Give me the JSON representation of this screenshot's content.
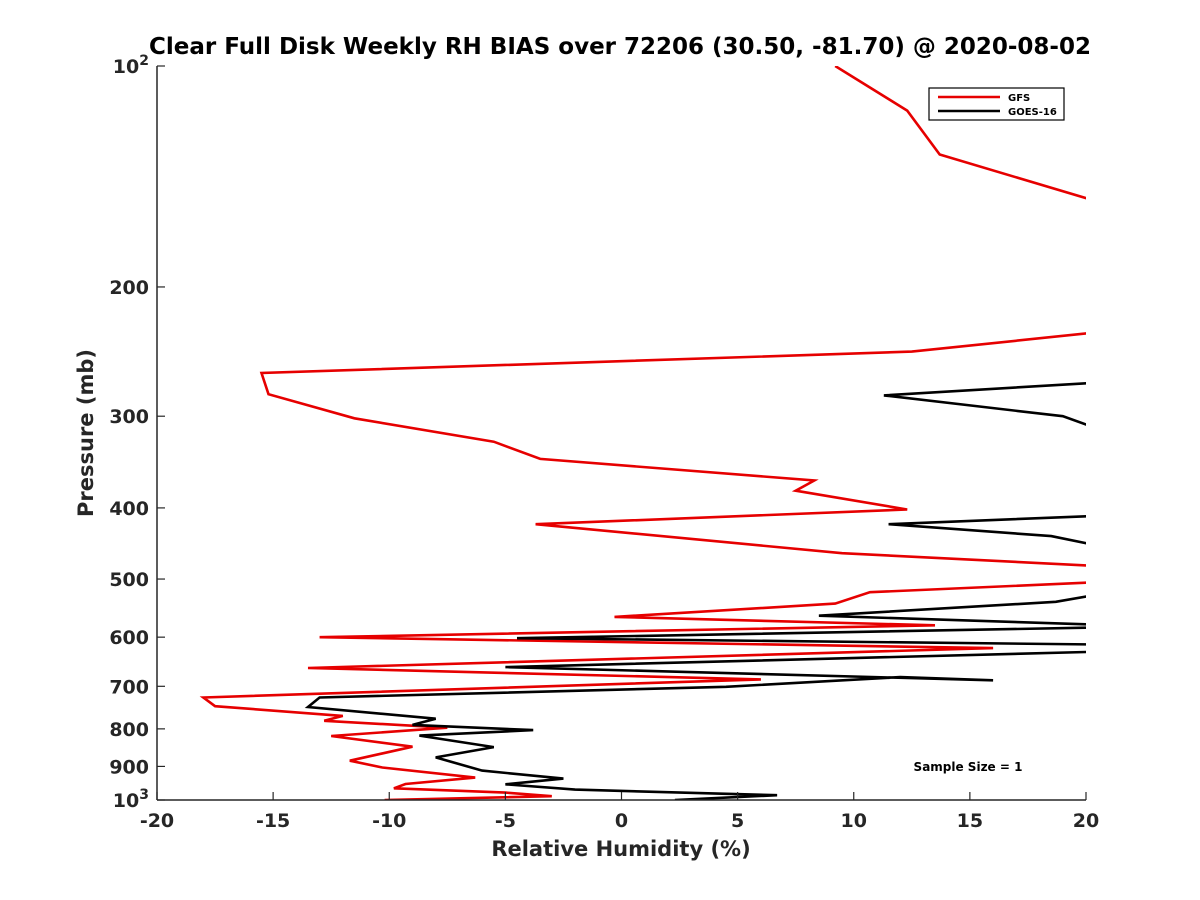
{
  "chart_data": {
    "type": "line",
    "title": "Clear Full Disk Weekly RH BIAS over 72206 (30.50, -81.70) @ 2020-08-02",
    "xlabel": "Relative Humidity (%)",
    "ylabel": "Pressure (mb)",
    "xlim": [
      -20,
      20
    ],
    "ylim": [
      100,
      1000
    ],
    "yscale": "log",
    "y_reversed": true,
    "grid": false,
    "legend_position": "top-right",
    "x_ticks": [
      -20,
      -15,
      -10,
      -5,
      0,
      5,
      10,
      15,
      20
    ],
    "x_tick_labels": [
      "-20",
      "-15",
      "-10",
      "-5",
      "0",
      "5",
      "10",
      "15",
      "20"
    ],
    "y_ticks": [
      100,
      200,
      300,
      400,
      500,
      600,
      700,
      800,
      900,
      1000
    ],
    "y_tick_labels": [
      {
        "base": "10",
        "exp": "2"
      },
      {
        "base": "200",
        "exp": ""
      },
      {
        "base": "300",
        "exp": ""
      },
      {
        "base": "400",
        "exp": ""
      },
      {
        "base": "500",
        "exp": ""
      },
      {
        "base": "600",
        "exp": ""
      },
      {
        "base": "700",
        "exp": ""
      },
      {
        "base": "800",
        "exp": ""
      },
      {
        "base": "900",
        "exp": ""
      },
      {
        "base": "10",
        "exp": "3"
      }
    ],
    "annotation": "Sample Size = 1",
    "series": [
      {
        "name": "GFS",
        "color": "#e60000",
        "points": [
          [
            9.2,
            100
          ],
          [
            12.3,
            115
          ],
          [
            13.7,
            132
          ],
          [
            20.5,
            153
          ],
          [
            20.8,
            230
          ],
          [
            12.5,
            245
          ],
          [
            -15.5,
            262
          ],
          [
            -15.2,
            280
          ],
          [
            -11.5,
            302
          ],
          [
            -5.5,
            325
          ],
          [
            -3.5,
            343
          ],
          [
            8.3,
            367
          ],
          [
            7.5,
            379
          ],
          [
            12.3,
            402
          ],
          [
            -3.7,
            421
          ],
          [
            9.5,
            461
          ],
          [
            20.5,
            480
          ],
          [
            20.5,
            505
          ],
          [
            10.7,
            521
          ],
          [
            9.2,
            540
          ],
          [
            -0.3,
            563
          ],
          [
            13.5,
            578
          ],
          [
            -13.0,
            600
          ],
          [
            16.0,
            621
          ],
          [
            -13.5,
            661
          ],
          [
            6.0,
            685
          ],
          [
            -18.0,
            725
          ],
          [
            -17.5,
            745
          ],
          [
            -12.0,
            768
          ],
          [
            -12.8,
            780
          ],
          [
            -7.5,
            797
          ],
          [
            -12.5,
            818
          ],
          [
            -9.0,
            846
          ],
          [
            -11.7,
            884
          ],
          [
            -10.3,
            903
          ],
          [
            -6.3,
            932
          ],
          [
            -9.3,
            951
          ],
          [
            -9.8,
            964
          ],
          [
            -5.0,
            977
          ],
          [
            -3.0,
            988
          ],
          [
            -10.2,
            1000
          ]
        ]
      },
      {
        "name": "GOES-16",
        "color": "#000000",
        "points": [
          [
            20.5,
            270
          ],
          [
            11.3,
            281
          ],
          [
            19.0,
            300
          ],
          [
            20.5,
            312
          ],
          [
            20.5,
            410
          ],
          [
            11.5,
            421
          ],
          [
            18.5,
            437
          ],
          [
            20.5,
            450
          ],
          [
            20.5,
            525
          ],
          [
            18.7,
            537
          ],
          [
            8.5,
            561
          ],
          [
            20.5,
            577
          ],
          [
            20.5,
            582
          ],
          [
            -4.5,
            602
          ],
          [
            20.5,
            614
          ],
          [
            20.5,
            628
          ],
          [
            -5.0,
            659
          ],
          [
            16.0,
            687
          ],
          [
            12.0,
            680
          ],
          [
            4.5,
            701
          ],
          [
            -13.0,
            725
          ],
          [
            -13.5,
            747
          ],
          [
            -8.0,
            775
          ],
          [
            -9.0,
            790
          ],
          [
            -3.8,
            803
          ],
          [
            -8.7,
            817
          ],
          [
            -5.5,
            847
          ],
          [
            -8.0,
            875
          ],
          [
            -6.0,
            912
          ],
          [
            -2.5,
            935
          ],
          [
            -5.0,
            952
          ],
          [
            -2.0,
            968
          ],
          [
            6.7,
            985
          ],
          [
            2.3,
            1000
          ]
        ]
      }
    ]
  }
}
